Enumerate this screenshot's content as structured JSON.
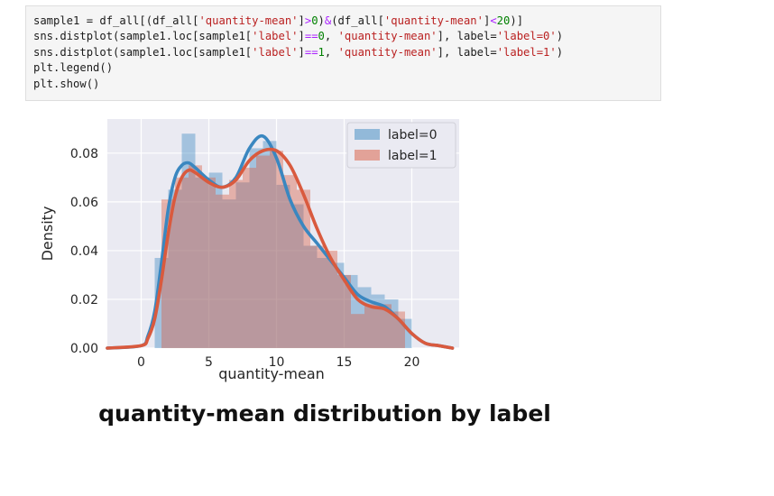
{
  "code": {
    "lines": [
      [
        {
          "t": "sample1 = df_all[(df_all["
        },
        {
          "t": "'quantity-mean'",
          "c": "str"
        },
        {
          "t": "]"
        },
        {
          "t": ">",
          "c": "op"
        },
        {
          "t": "0",
          "c": "num"
        },
        {
          "t": ")"
        },
        {
          "t": "&",
          "c": "op"
        },
        {
          "t": "(df_all["
        },
        {
          "t": "'quantity-mean'",
          "c": "str"
        },
        {
          "t": "]"
        },
        {
          "t": "<",
          "c": "op"
        },
        {
          "t": "20",
          "c": "num"
        },
        {
          "t": ")]"
        }
      ],
      [
        {
          "t": "sns.distplot(sample1.loc[sample1["
        },
        {
          "t": "'label'",
          "c": "str"
        },
        {
          "t": "]"
        },
        {
          "t": "==",
          "c": "op"
        },
        {
          "t": "0",
          "c": "num"
        },
        {
          "t": ", "
        },
        {
          "t": "'quantity-mean'",
          "c": "str"
        },
        {
          "t": "], label="
        },
        {
          "t": "'label=0'",
          "c": "str"
        },
        {
          "t": ")"
        }
      ],
      [
        {
          "t": "sns.distplot(sample1.loc[sample1["
        },
        {
          "t": "'label'",
          "c": "str"
        },
        {
          "t": "]"
        },
        {
          "t": "==",
          "c": "op"
        },
        {
          "t": "1",
          "c": "num"
        },
        {
          "t": ", "
        },
        {
          "t": "'quantity-mean'",
          "c": "str"
        },
        {
          "t": "], label="
        },
        {
          "t": "'label=1'",
          "c": "str"
        },
        {
          "t": ")"
        }
      ],
      [
        {
          "t": "plt.legend()"
        }
      ],
      [
        {
          "t": "plt.show()"
        }
      ]
    ]
  },
  "caption": "quantity-mean distribution by label",
  "colors": {
    "code_string": "#ba2121",
    "code_number": "#008000",
    "code_operator": "#aa22ff",
    "plot_background": "#eaeaf2",
    "grid": "#ffffff",
    "label0": "#3a87c0",
    "label1": "#d95a3e"
  },
  "chart_data": {
    "type": "bar",
    "style": "seaborn distplot: histogram + KDE line per series",
    "xlabel": "quantity-mean",
    "ylabel": "Density",
    "xlim": [
      -2.5,
      23.5
    ],
    "ylim": [
      0,
      0.094
    ],
    "xticks": [
      0,
      5,
      10,
      15,
      20
    ],
    "yticks": [
      0.0,
      0.02,
      0.04,
      0.06,
      0.08
    ],
    "ytick_labels": [
      "0.00",
      "0.02",
      "0.04",
      "0.06",
      "0.08"
    ],
    "grid": true,
    "legend": "top-right",
    "series": [
      {
        "name": "label=0",
        "color": "#3a87c0",
        "hist": {
          "bin_edges": [
            1,
            2,
            3,
            4,
            5,
            6,
            7,
            8,
            9,
            10,
            11,
            12,
            13,
            14,
            15,
            16,
            17,
            18,
            19,
            20
          ],
          "values": [
            0.037,
            0.065,
            0.088,
            0.07,
            0.072,
            0.061,
            0.068,
            0.082,
            0.085,
            0.067,
            0.059,
            0.042,
            0.037,
            0.035,
            0.03,
            0.025,
            0.022,
            0.02,
            0.012
          ]
        },
        "kde": {
          "x": [
            -2.5,
            0,
            0.5,
            1,
            1.5,
            2,
            2.5,
            3,
            3.5,
            4,
            5,
            6,
            7,
            8,
            9,
            10,
            11,
            12,
            13,
            14,
            15,
            16,
            17,
            18,
            19,
            20,
            21,
            22,
            23
          ],
          "y": [
            0,
            0.001,
            0.005,
            0.015,
            0.035,
            0.057,
            0.07,
            0.075,
            0.076,
            0.074,
            0.069,
            0.066,
            0.07,
            0.082,
            0.087,
            0.078,
            0.061,
            0.05,
            0.043,
            0.036,
            0.029,
            0.022,
            0.019,
            0.017,
            0.012,
            0.006,
            0.002,
            0.001,
            0
          ]
        }
      },
      {
        "name": "label=1",
        "color": "#d95a3e",
        "hist": {
          "bin_edges": [
            1.5,
            2.5,
            3.5,
            4.5,
            5.5,
            6.5,
            7.5,
            8.5,
            9.5,
            10.5,
            11.5,
            12.5,
            13.5,
            14.5,
            15.5,
            16.5,
            17.5,
            18.5,
            19.5
          ],
          "values": [
            0.061,
            0.07,
            0.075,
            0.07,
            0.063,
            0.069,
            0.074,
            0.079,
            0.081,
            0.071,
            0.065,
            0.042,
            0.04,
            0.03,
            0.014,
            0.018,
            0.018,
            0.015
          ]
        },
        "kde": {
          "x": [
            -2.5,
            0,
            0.5,
            1,
            1.5,
            2,
            2.5,
            3,
            3.5,
            4,
            5,
            6,
            7,
            8,
            9,
            10,
            11,
            12,
            13,
            14,
            15,
            16,
            17,
            18,
            19,
            20,
            21,
            22,
            23
          ],
          "y": [
            0,
            0.001,
            0.004,
            0.012,
            0.028,
            0.047,
            0.062,
            0.07,
            0.073,
            0.072,
            0.068,
            0.066,
            0.069,
            0.077,
            0.081,
            0.081,
            0.075,
            0.063,
            0.049,
            0.037,
            0.028,
            0.02,
            0.017,
            0.016,
            0.012,
            0.006,
            0.002,
            0.001,
            0
          ]
        }
      }
    ]
  }
}
